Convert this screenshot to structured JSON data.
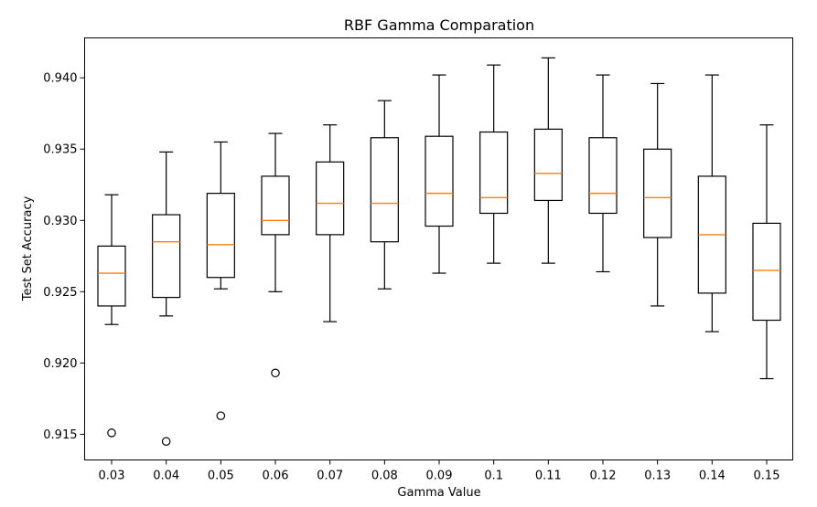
{
  "chart_data": {
    "type": "boxplot",
    "title": "RBF Gamma Comparation",
    "xlabel": "Gamma Value",
    "ylabel": "Test Set Accuracy",
    "ylim": [
      0.9132,
      0.9428
    ],
    "yticks": [
      0.915,
      0.92,
      0.925,
      0.93,
      0.935,
      0.94
    ],
    "ytick_labels": [
      "0.915",
      "0.920",
      "0.925",
      "0.930",
      "0.935",
      "0.940"
    ],
    "grid": false,
    "colors": {
      "box": "#000000",
      "median": "#ff7f0e",
      "flier": "#000000"
    },
    "categories": [
      "0.03",
      "0.04",
      "0.05",
      "0.06",
      "0.07",
      "0.08",
      "0.09",
      "0.1",
      "0.11",
      "0.12",
      "0.13",
      "0.14",
      "0.15"
    ],
    "boxes": [
      {
        "whislo": 0.9227,
        "q1": 0.924,
        "med": 0.9263,
        "q3": 0.9282,
        "whishi": 0.9318,
        "fliers": [
          0.9151
        ]
      },
      {
        "whislo": 0.9233,
        "q1": 0.9246,
        "med": 0.9285,
        "q3": 0.9304,
        "whishi": 0.9348,
        "fliers": [
          0.9145
        ]
      },
      {
        "whislo": 0.9252,
        "q1": 0.926,
        "med": 0.9283,
        "q3": 0.9319,
        "whishi": 0.9355,
        "fliers": [
          0.9163
        ]
      },
      {
        "whislo": 0.925,
        "q1": 0.929,
        "med": 0.93,
        "q3": 0.9331,
        "whishi": 0.9361,
        "fliers": [
          0.9193
        ]
      },
      {
        "whislo": 0.9229,
        "q1": 0.929,
        "med": 0.9312,
        "q3": 0.9341,
        "whishi": 0.9367,
        "fliers": []
      },
      {
        "whislo": 0.9252,
        "q1": 0.9285,
        "med": 0.9312,
        "q3": 0.9358,
        "whishi": 0.9384,
        "fliers": []
      },
      {
        "whislo": 0.9263,
        "q1": 0.9296,
        "med": 0.9319,
        "q3": 0.9359,
        "whishi": 0.9402,
        "fliers": []
      },
      {
        "whislo": 0.927,
        "q1": 0.9305,
        "med": 0.9316,
        "q3": 0.9362,
        "whishi": 0.9409,
        "fliers": []
      },
      {
        "whislo": 0.927,
        "q1": 0.9314,
        "med": 0.9333,
        "q3": 0.9364,
        "whishi": 0.9414,
        "fliers": []
      },
      {
        "whislo": 0.9264,
        "q1": 0.9305,
        "med": 0.9319,
        "q3": 0.9358,
        "whishi": 0.9402,
        "fliers": []
      },
      {
        "whislo": 0.924,
        "q1": 0.9288,
        "med": 0.9316,
        "q3": 0.935,
        "whishi": 0.9396,
        "fliers": []
      },
      {
        "whislo": 0.9222,
        "q1": 0.9249,
        "med": 0.929,
        "q3": 0.9331,
        "whishi": 0.9402,
        "fliers": []
      },
      {
        "whislo": 0.9189,
        "q1": 0.923,
        "med": 0.9265,
        "q3": 0.9298,
        "whishi": 0.9367,
        "fliers": []
      }
    ]
  }
}
